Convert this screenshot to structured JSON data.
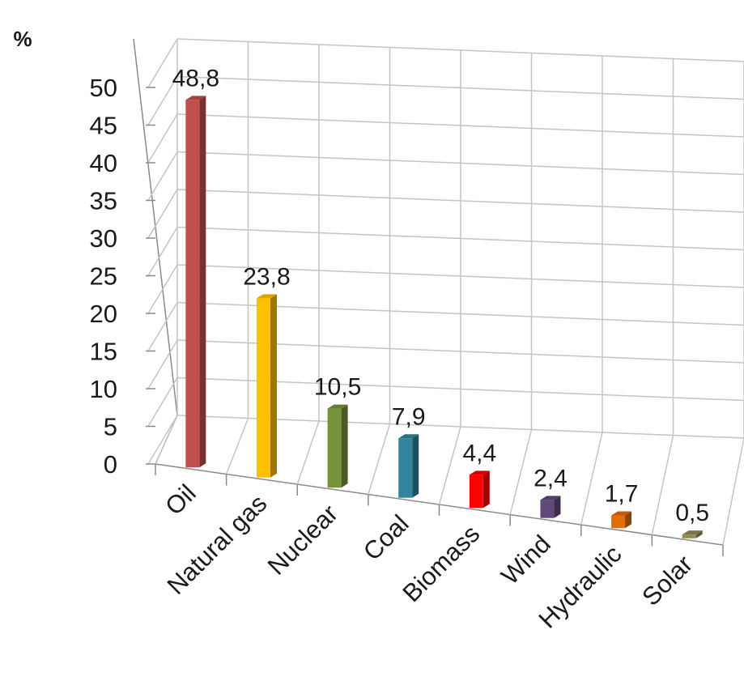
{
  "chart_data": {
    "type": "bar",
    "style": "3d-column",
    "unit_label": "%",
    "categories": [
      "Oil",
      "Natural gas",
      "Nuclear",
      "Coal",
      "Biomass",
      "Wind",
      "Hydraulic",
      "Solar"
    ],
    "values": [
      48.8,
      23.8,
      10.5,
      7.9,
      4.4,
      2.4,
      1.7,
      0.5
    ],
    "value_labels": [
      "48,8",
      "23,8",
      "10,5",
      "7,9",
      "4,4",
      "2,4",
      "1,7",
      "0,5"
    ],
    "yticks": [
      0,
      5,
      10,
      15,
      20,
      25,
      30,
      35,
      40,
      45,
      50
    ],
    "ylim": [
      0,
      50
    ],
    "grid": true,
    "legend": false,
    "colors": [
      "#c0504d",
      "#ffc000",
      "#77933c",
      "#31859c",
      "#ff0000",
      "#604a7b",
      "#e46c0a",
      "#948a54"
    ]
  }
}
